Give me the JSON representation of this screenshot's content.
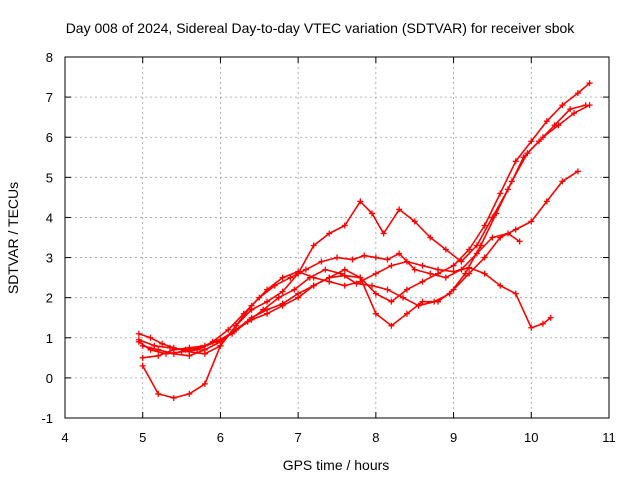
{
  "chart_data": {
    "type": "scatter",
    "title": "Day 008 of 2024, Sidereal Day-to-day VTEC variation (SDTVAR) for receiver sbok",
    "xlabel": "GPS time / hours",
    "ylabel": "SDTVAR / TECUs",
    "xlim": [
      4,
      11
    ],
    "ylim": [
      -1,
      8
    ],
    "xticks": [
      4,
      5,
      6,
      7,
      8,
      9,
      10,
      11
    ],
    "yticks": [
      -1,
      0,
      1,
      2,
      3,
      4,
      5,
      6,
      7,
      8
    ],
    "grid": true,
    "marker": "plus",
    "color": "#ff0000",
    "series": [
      {
        "x": [
          4.95,
          5.1,
          5.25,
          5.4,
          5.6,
          5.8,
          6.0,
          6.2,
          6.4,
          6.6,
          6.8,
          7.0,
          7.2,
          7.4,
          7.6,
          7.8,
          8.0,
          8.2,
          8.4,
          8.6,
          8.8,
          9.0,
          9.2,
          9.4,
          9.6,
          9.8,
          10.0,
          10.15,
          10.25
        ],
        "y": [
          1.1,
          1.0,
          0.85,
          0.75,
          0.65,
          0.6,
          0.8,
          1.3,
          1.8,
          2.2,
          2.5,
          2.65,
          2.5,
          2.4,
          2.3,
          2.4,
          2.6,
          2.8,
          2.9,
          2.8,
          2.7,
          2.65,
          2.75,
          2.6,
          2.3,
          2.1,
          1.25,
          1.35,
          1.5
        ]
      },
      {
        "x": [
          4.95,
          5.1,
          5.3,
          5.5,
          5.7,
          5.9,
          6.1,
          6.3,
          6.5,
          6.7,
          6.9,
          7.1,
          7.3,
          7.5,
          7.7,
          7.85,
          8.0,
          8.15,
          8.3,
          8.5,
          8.7,
          8.9,
          9.1,
          9.3,
          9.5,
          9.7,
          9.85
        ],
        "y": [
          0.9,
          0.7,
          0.6,
          0.65,
          0.7,
          0.9,
          1.2,
          1.6,
          2.0,
          2.3,
          2.5,
          2.7,
          2.9,
          3.0,
          2.95,
          3.05,
          3.0,
          2.95,
          3.1,
          2.7,
          2.6,
          2.5,
          2.7,
          3.1,
          3.5,
          3.6,
          3.4
        ]
      },
      {
        "x": [
          5.0,
          5.2,
          5.4,
          5.6,
          5.8,
          6.0,
          6.2,
          6.4,
          6.6,
          6.8,
          7.0,
          7.2,
          7.4,
          7.6,
          7.8,
          7.95,
          8.1,
          8.3,
          8.5,
          8.7,
          8.9,
          9.1,
          9.3,
          9.5,
          9.7,
          9.9,
          10.1,
          10.3,
          10.5,
          10.7
        ],
        "y": [
          0.3,
          -0.4,
          -0.5,
          -0.4,
          -0.15,
          0.8,
          1.3,
          1.7,
          1.9,
          2.15,
          2.6,
          3.3,
          3.6,
          3.8,
          4.4,
          4.1,
          3.6,
          4.2,
          3.9,
          3.5,
          3.2,
          2.9,
          3.3,
          4.0,
          4.7,
          5.5,
          5.9,
          6.3,
          6.7,
          6.8
        ]
      },
      {
        "x": [
          5.0,
          5.2,
          5.4,
          5.6,
          5.8,
          6.0,
          6.2,
          6.4,
          6.6,
          6.8,
          7.0,
          7.2,
          7.4,
          7.6,
          7.8,
          8.0,
          8.2,
          8.4,
          8.6,
          8.8,
          9.0,
          9.2,
          9.4,
          9.6,
          9.8,
          10.0,
          10.2,
          10.4,
          10.6
        ],
        "y": [
          0.8,
          0.7,
          0.6,
          0.55,
          0.7,
          0.9,
          1.2,
          1.5,
          1.7,
          1.85,
          2.1,
          2.3,
          2.5,
          2.7,
          2.5,
          1.6,
          1.3,
          1.6,
          1.9,
          1.9,
          2.2,
          2.6,
          3.0,
          3.5,
          3.7,
          3.9,
          4.4,
          4.9,
          5.15
        ]
      },
      {
        "x": [
          5.0,
          5.2,
          5.4,
          5.6,
          5.8,
          6.0,
          6.2,
          6.4,
          6.6,
          6.8,
          7.0,
          7.2,
          7.4,
          7.6,
          7.8,
          8.0,
          8.2,
          8.4,
          8.6,
          8.8,
          9.0,
          9.2,
          9.4,
          9.6,
          9.8,
          10.0,
          10.2,
          10.4,
          10.6,
          10.75
        ],
        "y": [
          0.5,
          0.55,
          0.7,
          0.75,
          0.8,
          0.95,
          1.2,
          1.45,
          1.6,
          1.8,
          2.0,
          2.3,
          2.5,
          2.55,
          2.5,
          2.1,
          1.9,
          2.2,
          2.4,
          2.6,
          2.8,
          3.2,
          3.8,
          4.6,
          5.4,
          5.9,
          6.4,
          6.8,
          7.1,
          7.35
        ]
      },
      {
        "x": [
          4.95,
          5.15,
          5.35,
          5.55,
          5.75,
          5.95,
          6.15,
          6.35,
          6.55,
          6.75,
          6.95,
          7.15,
          7.35,
          7.55,
          7.75,
          7.95,
          8.15,
          8.35,
          8.55,
          8.75,
          8.95,
          9.15,
          9.35,
          9.55,
          9.75,
          9.95,
          10.15,
          10.35,
          10.55,
          10.75
        ],
        "y": [
          0.95,
          0.8,
          0.75,
          0.7,
          0.75,
          0.9,
          1.1,
          1.4,
          1.7,
          2.0,
          2.2,
          2.5,
          2.7,
          2.6,
          2.35,
          2.3,
          2.2,
          2.0,
          1.8,
          1.9,
          2.1,
          2.6,
          3.3,
          4.1,
          4.9,
          5.6,
          6.0,
          6.3,
          6.6,
          6.8
        ]
      }
    ]
  }
}
